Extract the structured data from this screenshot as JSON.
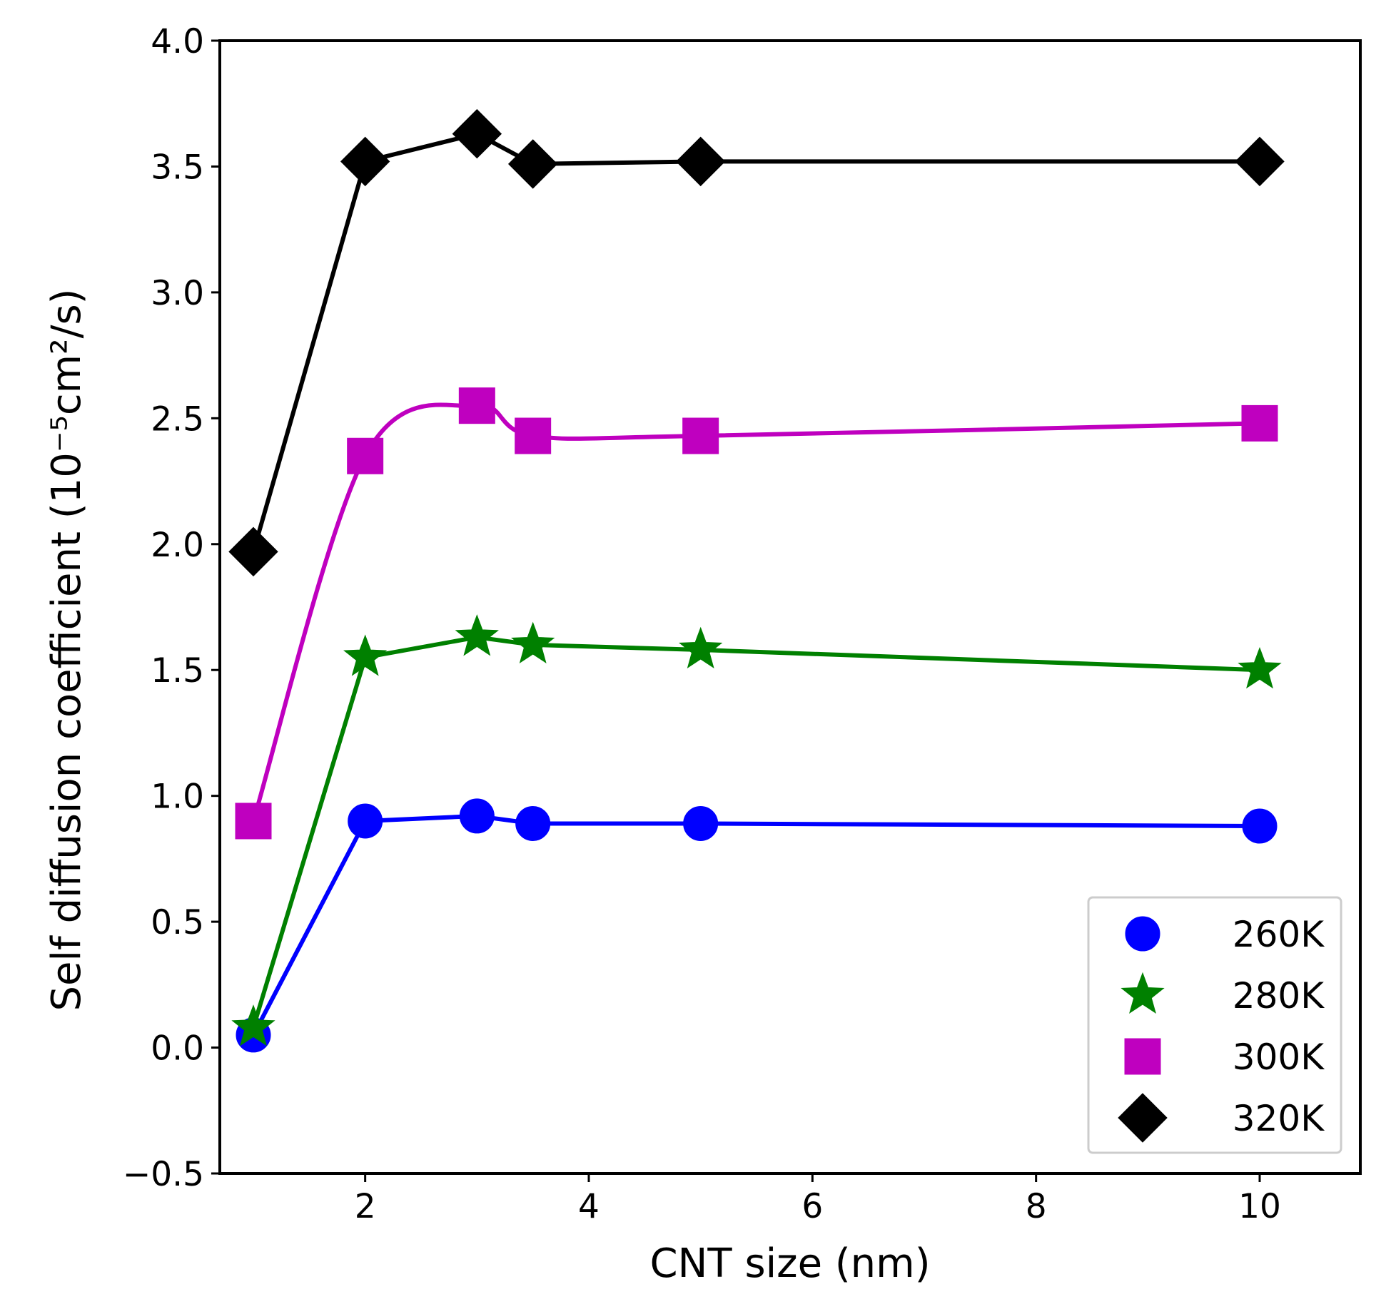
{
  "chart_data": {
    "type": "line",
    "xlabel": "CNT size (nm)",
    "ylabel": "Self diffusion coefficient (10⁻⁵cm²/s)",
    "xlim": [
      0.7,
      10.9
    ],
    "ylim": [
      -0.5,
      4.0
    ],
    "xticks": [
      2,
      4,
      6,
      8,
      10
    ],
    "xtick_labels": [
      "2",
      "4",
      "6",
      "8",
      "10"
    ],
    "yticks": [
      -0.5,
      0.0,
      0.5,
      1.0,
      1.5,
      2.0,
      2.5,
      3.0,
      3.5,
      4.0
    ],
    "ytick_labels": [
      "−0.5",
      "0.0",
      "0.5",
      "1.0",
      "1.5",
      "2.0",
      "2.5",
      "3.0",
      "3.5",
      "4.0"
    ],
    "legend_position": "lower-right",
    "x": [
      1,
      2,
      3,
      3.5,
      5,
      10
    ],
    "series": [
      {
        "name": "260K",
        "color": "#0000ff",
        "marker": "circle",
        "curve": "linear",
        "values": [
          0.05,
          0.9,
          0.92,
          0.89,
          0.89,
          0.88
        ]
      },
      {
        "name": "280K",
        "color": "#008000",
        "marker": "star",
        "curve": "linear",
        "values": [
          0.08,
          1.55,
          1.63,
          1.6,
          1.58,
          1.5
        ]
      },
      {
        "name": "300K",
        "color": "#bf00bf",
        "marker": "square",
        "curve": "spline",
        "values": [
          0.9,
          2.35,
          2.55,
          2.43,
          2.43,
          2.48
        ]
      },
      {
        "name": "320K",
        "color": "#000000",
        "marker": "diamond",
        "curve": "linear",
        "values": [
          1.97,
          3.52,
          3.63,
          3.51,
          3.52,
          3.52
        ]
      }
    ]
  }
}
